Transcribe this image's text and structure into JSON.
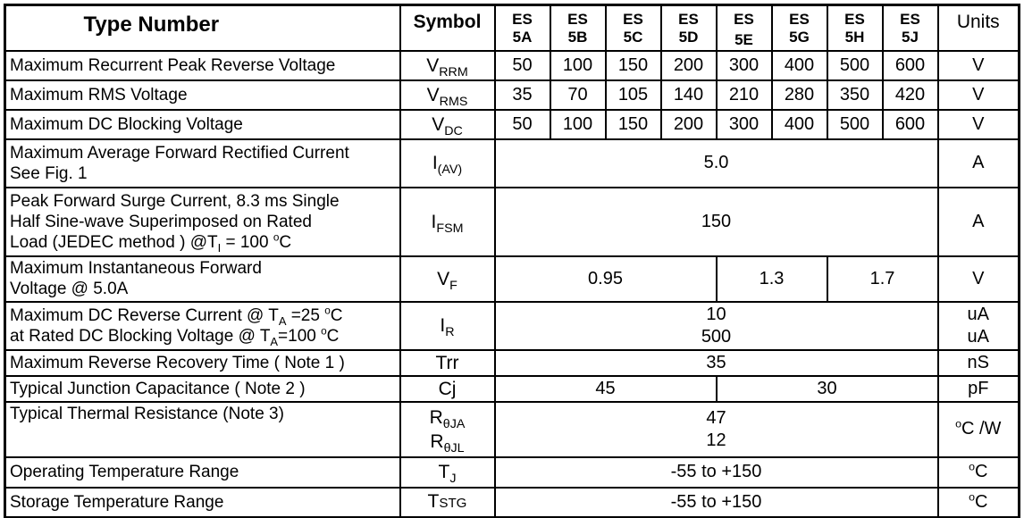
{
  "doc": {
    "title": "ES5A-ES5J maximum ratings and electrical characteristics table",
    "header": {
      "type_number": "Type Number",
      "symbol": "Symbol",
      "units": "Units",
      "types": [
        {
          "line1": "ES",
          "line2": "5A"
        },
        {
          "line1": "ES",
          "line2": "5B"
        },
        {
          "line1": "ES",
          "line2": "5C"
        },
        {
          "line1": "ES",
          "line2": "5D"
        },
        {
          "line1": "ES",
          "line2": "5E"
        },
        {
          "line1": "ES",
          "line2": "5G"
        },
        {
          "line1": "ES",
          "line2": "5H"
        },
        {
          "line1": "ES",
          "line2": "5J"
        }
      ]
    },
    "rows": [
      {
        "param": [
          [
            {
              "t": "Maximum Recurrent Peak Reverse Voltage"
            }
          ]
        ],
        "symbol": [
          [
            {
              "t": "V"
            },
            {
              "sub": "RRM"
            }
          ]
        ],
        "values": [
          {
            "span": 1,
            "lines": [
              [
                {
                  "t": "50"
                }
              ]
            ]
          },
          {
            "span": 1,
            "lines": [
              [
                {
                  "t": "100"
                }
              ]
            ]
          },
          {
            "span": 1,
            "lines": [
              [
                {
                  "t": "150"
                }
              ]
            ]
          },
          {
            "span": 1,
            "lines": [
              [
                {
                  "t": "200"
                }
              ]
            ]
          },
          {
            "span": 1,
            "lines": [
              [
                {
                  "t": "300"
                }
              ]
            ]
          },
          {
            "span": 1,
            "lines": [
              [
                {
                  "t": "400"
                }
              ]
            ]
          },
          {
            "span": 1,
            "lines": [
              [
                {
                  "t": "500"
                }
              ]
            ]
          },
          {
            "span": 1,
            "lines": [
              [
                {
                  "t": "600"
                }
              ]
            ]
          }
        ],
        "units": [
          [
            {
              "t": "V"
            }
          ]
        ]
      },
      {
        "param": [
          [
            {
              "t": "Maximum RMS Voltage"
            }
          ]
        ],
        "symbol": [
          [
            {
              "t": "V"
            },
            {
              "sub": "RMS"
            }
          ]
        ],
        "values": [
          {
            "span": 1,
            "lines": [
              [
                {
                  "t": "35"
                }
              ]
            ]
          },
          {
            "span": 1,
            "lines": [
              [
                {
                  "t": "70"
                }
              ]
            ]
          },
          {
            "span": 1,
            "lines": [
              [
                {
                  "t": "105"
                }
              ]
            ]
          },
          {
            "span": 1,
            "lines": [
              [
                {
                  "t": "140"
                }
              ]
            ]
          },
          {
            "span": 1,
            "lines": [
              [
                {
                  "t": "210"
                }
              ]
            ]
          },
          {
            "span": 1,
            "lines": [
              [
                {
                  "t": "280"
                }
              ]
            ]
          },
          {
            "span": 1,
            "lines": [
              [
                {
                  "t": "350"
                }
              ]
            ]
          },
          {
            "span": 1,
            "lines": [
              [
                {
                  "t": "420"
                }
              ]
            ]
          }
        ],
        "units": [
          [
            {
              "t": "V"
            }
          ]
        ]
      },
      {
        "param": [
          [
            {
              "t": "Maximum DC Blocking Voltage"
            }
          ]
        ],
        "symbol": [
          [
            {
              "t": "V"
            },
            {
              "sub": "DC"
            }
          ]
        ],
        "values": [
          {
            "span": 1,
            "lines": [
              [
                {
                  "t": "50"
                }
              ]
            ]
          },
          {
            "span": 1,
            "lines": [
              [
                {
                  "t": "100"
                }
              ]
            ]
          },
          {
            "span": 1,
            "lines": [
              [
                {
                  "t": "150"
                }
              ]
            ]
          },
          {
            "span": 1,
            "lines": [
              [
                {
                  "t": "200"
                }
              ]
            ]
          },
          {
            "span": 1,
            "lines": [
              [
                {
                  "t": "300"
                }
              ]
            ]
          },
          {
            "span": 1,
            "lines": [
              [
                {
                  "t": "400"
                }
              ]
            ]
          },
          {
            "span": 1,
            "lines": [
              [
                {
                  "t": "500"
                }
              ]
            ]
          },
          {
            "span": 1,
            "lines": [
              [
                {
                  "t": "600"
                }
              ]
            ]
          }
        ],
        "units": [
          [
            {
              "t": "V"
            }
          ]
        ]
      },
      {
        "param": [
          [
            {
              "t": "Maximum Average Forward Rectified Current"
            }
          ],
          [
            {
              "t": "See Fig. 1"
            }
          ]
        ],
        "symbol": [
          [
            {
              "t": "I"
            },
            {
              "sub": "(AV)"
            }
          ]
        ],
        "values": [
          {
            "span": 8,
            "lines": [
              [
                {
                  "t": "5.0"
                }
              ]
            ]
          }
        ],
        "units": [
          [
            {
              "t": "A"
            }
          ]
        ]
      },
      {
        "param": [
          [
            {
              "t": "Peak Forward Surge Current, 8.3 ms Single"
            }
          ],
          [
            {
              "t": "Half Sine-wave Superimposed on Rated"
            }
          ],
          [
            {
              "t": "Load (JEDEC method ) @T"
            },
            {
              "sub": "I"
            },
            {
              "t": " = 100 "
            },
            {
              "sup": "o"
            },
            {
              "t": "C"
            }
          ]
        ],
        "symbol": [
          [
            {
              "t": "I"
            },
            {
              "sub": "FSM"
            }
          ]
        ],
        "values": [
          {
            "span": 8,
            "lines": [
              [
                {
                  "t": "150"
                }
              ]
            ]
          }
        ],
        "units": [
          [
            {
              "t": "A"
            }
          ]
        ]
      },
      {
        "param": [
          [
            {
              "t": "Maximum Instantaneous Forward"
            }
          ],
          [
            {
              "t": "Voltage @ 5.0A"
            }
          ]
        ],
        "symbol": [
          [
            {
              "t": "V"
            },
            {
              "sub": "F"
            }
          ]
        ],
        "values": [
          {
            "span": 4,
            "lines": [
              [
                {
                  "t": "0.95"
                }
              ]
            ]
          },
          {
            "span": 2,
            "lines": [
              [
                {
                  "t": "1.3"
                }
              ]
            ]
          },
          {
            "span": 2,
            "lines": [
              [
                {
                  "t": "1.7"
                }
              ]
            ]
          }
        ],
        "units": [
          [
            {
              "t": "V"
            }
          ]
        ]
      },
      {
        "param": [
          [
            {
              "t": "Maximum DC Reverse Current @ T"
            },
            {
              "sub": "A"
            },
            {
              "t": " =25 "
            },
            {
              "sup": "o"
            },
            {
              "t": "C"
            }
          ],
          [
            {
              "t": "at Rated DC Blocking Voltage @ T"
            },
            {
              "sub": "A"
            },
            {
              "t": "=100 "
            },
            {
              "sup": "o"
            },
            {
              "t": "C"
            }
          ]
        ],
        "symbol": [
          [
            {
              "t": "I"
            },
            {
              "sub": "R"
            }
          ]
        ],
        "values": [
          {
            "span": 8,
            "lines": [
              [
                {
                  "t": "10"
                }
              ],
              [
                {
                  "t": "500"
                }
              ]
            ]
          }
        ],
        "units": [
          [
            {
              "t": "uA"
            }
          ],
          [
            {
              "t": "uA"
            }
          ]
        ]
      },
      {
        "param": [
          [
            {
              "t": "Maximum Reverse Recovery Time ( Note 1 )"
            }
          ]
        ],
        "symbol": [
          [
            {
              "t": "Trr"
            }
          ]
        ],
        "values": [
          {
            "span": 8,
            "lines": [
              [
                {
                  "t": "35"
                }
              ]
            ]
          }
        ],
        "units": [
          [
            {
              "t": "nS"
            }
          ]
        ]
      },
      {
        "param": [
          [
            {
              "t": "Typical Junction Capacitance ( Note 2 )"
            }
          ]
        ],
        "symbol": [
          [
            {
              "t": "Cj"
            }
          ]
        ],
        "values": [
          {
            "span": 4,
            "lines": [
              [
                {
                  "t": "45"
                }
              ]
            ]
          },
          {
            "span": 4,
            "lines": [
              [
                {
                  "t": "30"
                }
              ]
            ]
          }
        ],
        "units": [
          [
            {
              "t": "pF"
            }
          ]
        ]
      },
      {
        "param": [
          [
            {
              "t": "Typical Thermal Resistance (Note 3)"
            }
          ]
        ],
        "symbol": [
          [
            {
              "t": "R"
            },
            {
              "sub": "θJA"
            }
          ],
          [
            {
              "t": "R"
            },
            {
              "sub": "θJL"
            }
          ]
        ],
        "values": [
          {
            "span": 8,
            "lines": [
              [
                {
                  "t": "47"
                }
              ],
              [
                {
                  "t": "12"
                }
              ]
            ]
          }
        ],
        "units": [
          [
            {
              "sup": "o"
            },
            {
              "t": "C /W"
            }
          ]
        ]
      },
      {
        "param": [
          [
            {
              "t": "Operating Temperature Range"
            }
          ]
        ],
        "symbol": [
          [
            {
              "t": "T"
            },
            {
              "sub": "J"
            }
          ]
        ],
        "values": [
          {
            "span": 8,
            "lines": [
              [
                {
                  "t": "-55 to +150"
                }
              ]
            ]
          }
        ],
        "units": [
          [
            {
              "sup": "o"
            },
            {
              "t": "C"
            }
          ]
        ]
      },
      {
        "param": [
          [
            {
              "t": "Storage Temperature Range"
            }
          ]
        ],
        "symbol": [
          [
            {
              "t": "T"
            },
            {
              "sm": "STG"
            }
          ]
        ],
        "values": [
          {
            "span": 8,
            "lines": [
              [
                {
                  "t": "-55 to +150"
                }
              ]
            ]
          }
        ],
        "units": [
          [
            {
              "sup": "o"
            },
            {
              "t": "C"
            }
          ]
        ]
      }
    ],
    "colors": {
      "border": "#000000",
      "text": "#000000",
      "background": "#ffffff"
    }
  }
}
